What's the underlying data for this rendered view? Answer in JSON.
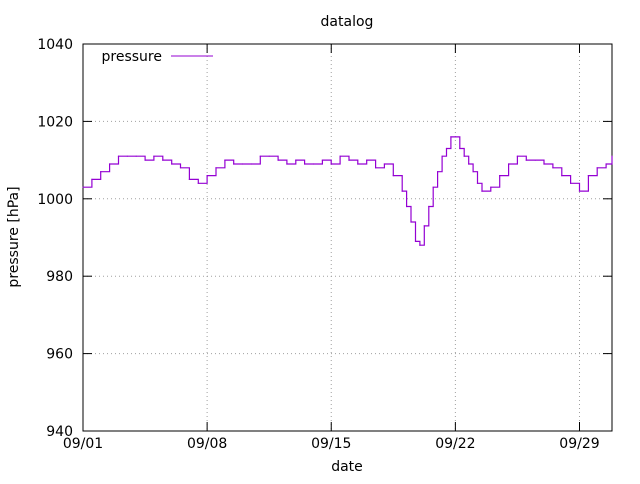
{
  "chart_data": {
    "type": "line",
    "title": "datalog",
    "xlabel": "date",
    "ylabel": "pressure [hPa]",
    "xlim": [
      "09/01",
      "09/30 20:00"
    ],
    "ylim": [
      940,
      1040
    ],
    "x_ticks": [
      "09/01",
      "09/08",
      "09/15",
      "09/22",
      "09/29"
    ],
    "y_ticks": [
      940,
      960,
      980,
      1000,
      1020,
      1040
    ],
    "grid": true,
    "legend_position": "top-left",
    "series": [
      {
        "name": "pressure",
        "color": "#9400d3",
        "step": true,
        "x": [
          "09/01 00:00",
          "09/01 12:00",
          "09/02 00:00",
          "09/02 12:00",
          "09/03 00:00",
          "09/03 12:00",
          "09/04 00:00",
          "09/04 12:00",
          "09/05 00:00",
          "09/05 12:00",
          "09/06 00:00",
          "09/06 12:00",
          "09/07 00:00",
          "09/07 12:00",
          "09/08 00:00",
          "09/08 12:00",
          "09/09 00:00",
          "09/09 12:00",
          "09/10 00:00",
          "09/10 12:00",
          "09/11 00:00",
          "09/11 12:00",
          "09/12 00:00",
          "09/12 12:00",
          "09/13 00:00",
          "09/13 12:00",
          "09/14 00:00",
          "09/14 12:00",
          "09/15 00:00",
          "09/15 12:00",
          "09/16 00:00",
          "09/16 12:00",
          "09/17 00:00",
          "09/17 12:00",
          "09/18 00:00",
          "09/18 12:00",
          "09/19 00:00",
          "09/19 06:00",
          "09/19 12:00",
          "09/19 18:00",
          "09/20 00:00",
          "09/20 06:00",
          "09/20 12:00",
          "09/20 18:00",
          "09/21 00:00",
          "09/21 06:00",
          "09/21 12:00",
          "09/21 18:00",
          "09/22 00:00",
          "09/22 06:00",
          "09/22 12:00",
          "09/22 18:00",
          "09/23 00:00",
          "09/23 06:00",
          "09/23 12:00",
          "09/24 00:00",
          "09/24 12:00",
          "09/25 00:00",
          "09/25 12:00",
          "09/26 00:00",
          "09/26 12:00",
          "09/27 00:00",
          "09/27 12:00",
          "09/28 00:00",
          "09/28 12:00",
          "09/29 00:00",
          "09/29 12:00",
          "09/30 00:00",
          "09/30 12:00",
          "09/30 20:00"
        ],
        "y": [
          1003,
          1005,
          1007,
          1009,
          1011,
          1011,
          1011,
          1010,
          1011,
          1010,
          1009,
          1008,
          1005,
          1004,
          1006,
          1008,
          1010,
          1009,
          1009,
          1009,
          1011,
          1011,
          1010,
          1009,
          1010,
          1009,
          1009,
          1010,
          1009,
          1011,
          1010,
          1009,
          1010,
          1008,
          1009,
          1006,
          1002,
          998,
          994,
          989,
          988,
          993,
          998,
          1003,
          1007,
          1011,
          1013,
          1016,
          1016,
          1013,
          1011,
          1009,
          1007,
          1004,
          1002,
          1003,
          1006,
          1009,
          1011,
          1010,
          1010,
          1009,
          1008,
          1006,
          1004,
          1002,
          1006,
          1008,
          1009,
          1011
        ]
      }
    ]
  }
}
